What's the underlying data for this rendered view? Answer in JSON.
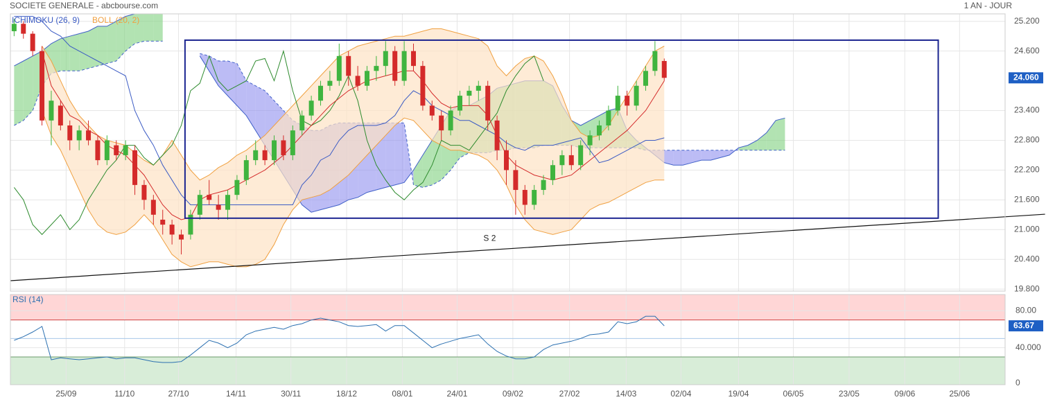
{
  "header": {
    "title": "SOCIETE GENERALE - abcbourse.com",
    "period": "1 AN - JOUR"
  },
  "chart_data": [
    {
      "type": "candlestick",
      "legend": [
        {
          "text": "ICHIMOKU (26, 9)",
          "color": "#3b5bc4"
        },
        {
          "text": "BOLL (20, 2)",
          "color": "#f0a040"
        }
      ],
      "xlim": [
        -0.4,
        106.7
      ],
      "xticks": [
        {
          "value": 5.6,
          "label": "25/09"
        },
        {
          "value": 11.9,
          "label": "11/10"
        },
        {
          "value": 17.7,
          "label": "27/10"
        },
        {
          "value": 23.9,
          "label": "14/11"
        },
        {
          "value": 29.8,
          "label": "30/11"
        },
        {
          "value": 35.8,
          "label": "18/12"
        },
        {
          "value": 41.8,
          "label": "08/01"
        },
        {
          "value": 47.7,
          "label": "24/01"
        },
        {
          "value": 53.7,
          "label": "09/02"
        },
        {
          "value": 59.8,
          "label": "27/02"
        },
        {
          "value": 65.9,
          "label": "14/03"
        },
        {
          "value": 71.8,
          "label": "02/04"
        },
        {
          "value": 78.0,
          "label": "19/04"
        },
        {
          "value": 83.9,
          "label": "06/05"
        },
        {
          "value": 89.9,
          "label": "23/05"
        },
        {
          "value": 95.9,
          "label": "09/06"
        },
        {
          "value": 101.8,
          "label": "25/06"
        }
      ],
      "ylim": [
        19.76,
        25.35
      ],
      "yticks": [
        {
          "value": 25.2,
          "label": "25.200"
        },
        {
          "value": 24.6,
          "label": "24.600"
        },
        {
          "value": 23.4,
          "label": "23.400"
        },
        {
          "value": 22.8,
          "label": "22.800"
        },
        {
          "value": 22.2,
          "label": "22.200"
        },
        {
          "value": 21.6,
          "label": "21.600"
        },
        {
          "value": 21.0,
          "label": "21.000"
        },
        {
          "value": 20.4,
          "label": "20.400"
        },
        {
          "value": 19.8,
          "label": "19.800"
        }
      ],
      "grid": true,
      "up_color": "#3fb43f",
      "down_color": "#d42a2a",
      "ohlc": [
        [
          25.0,
          25.25,
          24.9,
          25.15
        ],
        [
          25.15,
          25.2,
          24.85,
          24.95
        ],
        [
          24.95,
          25.0,
          24.5,
          24.6
        ],
        [
          24.6,
          24.7,
          23.1,
          23.2
        ],
        [
          23.2,
          23.8,
          22.7,
          23.6
        ],
        [
          23.5,
          23.6,
          23.0,
          23.1
        ],
        [
          23.1,
          23.2,
          22.6,
          22.8
        ],
        [
          22.8,
          23.1,
          22.6,
          23.0
        ],
        [
          23.0,
          23.2,
          22.7,
          22.8
        ],
        [
          22.8,
          22.9,
          22.3,
          22.4
        ],
        [
          22.4,
          22.9,
          22.3,
          22.8
        ],
        [
          22.7,
          22.8,
          22.4,
          22.5
        ],
        [
          22.5,
          22.8,
          22.4,
          22.7
        ],
        [
          22.6,
          22.7,
          21.7,
          21.9
        ],
        [
          21.9,
          22.0,
          21.4,
          21.6
        ],
        [
          21.6,
          21.7,
          21.1,
          21.3
        ],
        [
          21.2,
          21.4,
          20.9,
          21.1
        ],
        [
          21.1,
          21.2,
          20.7,
          20.9
        ],
        [
          20.9,
          21.0,
          20.5,
          20.8
        ],
        [
          20.9,
          21.4,
          20.8,
          21.3
        ],
        [
          21.3,
          21.8,
          21.2,
          21.7
        ],
        [
          21.7,
          22.0,
          21.5,
          21.6
        ],
        [
          21.5,
          21.7,
          21.2,
          21.4
        ],
        [
          21.4,
          21.8,
          21.2,
          21.7
        ],
        [
          21.7,
          22.1,
          21.6,
          22.0
        ],
        [
          22.0,
          22.5,
          21.9,
          22.4
        ],
        [
          22.4,
          22.8,
          22.3,
          22.6
        ],
        [
          22.6,
          22.7,
          22.3,
          22.4
        ],
        [
          22.4,
          22.9,
          22.3,
          22.8
        ],
        [
          22.8,
          22.9,
          22.4,
          22.5
        ],
        [
          22.5,
          23.1,
          22.4,
          23.0
        ],
        [
          23.0,
          23.4,
          22.9,
          23.3
        ],
        [
          23.3,
          23.7,
          23.2,
          23.6
        ],
        [
          23.6,
          24.0,
          23.5,
          23.9
        ],
        [
          23.9,
          24.2,
          23.8,
          24.0
        ],
        [
          24.0,
          24.75,
          23.9,
          24.5
        ],
        [
          24.5,
          24.6,
          23.9,
          24.1
        ],
        [
          24.1,
          24.3,
          23.8,
          23.9
        ],
        [
          23.9,
          24.3,
          23.8,
          24.2
        ],
        [
          24.2,
          24.5,
          24.0,
          24.3
        ],
        [
          24.3,
          24.8,
          24.1,
          24.6
        ],
        [
          24.6,
          24.7,
          23.9,
          24.0
        ],
        [
          24.0,
          24.8,
          23.9,
          24.6
        ],
        [
          24.6,
          24.75,
          24.2,
          24.3
        ],
        [
          24.3,
          24.4,
          23.4,
          23.5
        ],
        [
          23.5,
          23.6,
          23.2,
          23.3
        ],
        [
          23.3,
          23.4,
          22.8,
          23.0
        ],
        [
          23.0,
          23.5,
          22.9,
          23.4
        ],
        [
          23.4,
          23.8,
          23.3,
          23.7
        ],
        [
          23.7,
          23.9,
          23.5,
          23.8
        ],
        [
          23.8,
          24.0,
          23.6,
          23.9
        ],
        [
          23.9,
          24.0,
          23.0,
          23.2
        ],
        [
          23.2,
          23.3,
          22.4,
          22.6
        ],
        [
          22.6,
          22.8,
          21.9,
          22.2
        ],
        [
          22.2,
          22.4,
          21.3,
          21.8
        ],
        [
          21.8,
          21.9,
          21.3,
          21.5
        ],
        [
          21.5,
          21.9,
          21.4,
          21.8
        ],
        [
          21.8,
          22.1,
          21.7,
          22.0
        ],
        [
          22.0,
          22.4,
          21.9,
          22.3
        ],
        [
          22.3,
          22.6,
          22.1,
          22.5
        ],
        [
          22.5,
          22.7,
          22.2,
          22.3
        ],
        [
          22.3,
          22.8,
          22.2,
          22.7
        ],
        [
          22.7,
          23.0,
          22.5,
          22.9
        ],
        [
          22.9,
          23.2,
          22.8,
          23.1
        ],
        [
          23.1,
          23.5,
          23.0,
          23.4
        ],
        [
          23.4,
          23.9,
          23.3,
          23.7
        ],
        [
          23.7,
          23.8,
          23.3,
          23.5
        ],
        [
          23.5,
          24.0,
          23.4,
          23.9
        ],
        [
          23.9,
          24.3,
          23.8,
          24.2
        ],
        [
          24.2,
          24.8,
          24.1,
          24.6
        ],
        [
          24.4,
          24.45,
          24.0,
          24.06
        ]
      ],
      "last_label": {
        "value": 24.06,
        "label": "24.060",
        "color": "#1e5fc4"
      },
      "bollinger": {
        "color": "#f0a040",
        "fill": "#fde3c4",
        "upper": [
          null,
          null,
          null,
          24.7,
          24.4,
          24.0,
          23.6,
          23.3,
          23.1,
          22.9,
          22.8,
          22.75,
          22.7,
          22.55,
          22.4,
          22.3,
          22.5,
          22.8,
          22.5,
          22.2,
          22.0,
          22.1,
          22.25,
          22.35,
          22.5,
          22.6,
          22.75,
          22.9,
          23.1,
          23.3,
          23.5,
          23.7,
          23.9,
          24.1,
          24.3,
          24.5,
          24.6,
          24.7,
          24.75,
          24.8,
          24.85,
          24.9,
          24.9,
          24.95,
          25.0,
          25.05,
          25.05,
          25.0,
          24.95,
          24.9,
          24.85,
          24.7,
          24.3,
          24.1,
          24.3,
          24.45,
          24.5,
          24.4,
          24.1,
          23.7,
          23.2,
          22.95,
          22.85,
          22.9,
          23.1,
          23.4,
          23.7,
          24.0,
          24.3,
          24.6,
          24.7
        ],
        "lower": [
          null,
          null,
          null,
          23.4,
          22.9,
          22.6,
          22.2,
          21.8,
          21.4,
          21.1,
          20.95,
          20.9,
          20.95,
          21.1,
          21.3,
          21.1,
          20.8,
          20.5,
          20.35,
          20.25,
          20.3,
          20.35,
          20.35,
          20.3,
          20.25,
          20.25,
          20.3,
          20.4,
          20.7,
          21.1,
          21.4,
          21.6,
          21.65,
          21.7,
          21.8,
          21.95,
          22.1,
          22.3,
          22.5,
          22.7,
          22.9,
          23.1,
          23.25,
          23.2,
          23.0,
          22.8,
          22.7,
          22.6,
          22.6,
          22.55,
          22.5,
          22.4,
          22.2,
          21.9,
          21.5,
          21.2,
          21.0,
          20.95,
          20.9,
          20.95,
          21.0,
          21.2,
          21.4,
          21.5,
          21.55,
          21.65,
          21.75,
          21.85,
          21.95,
          22.0,
          22.0
        ]
      },
      "ichimoku": {
        "conversion_color": "#d42a2a",
        "base_color": "#3b5bc4",
        "lagging_color": "#2e8b2e",
        "span_color": "#4060c8",
        "bull_fill": "#7fd07f",
        "bear_fill": "#9090ee",
        "conversion": [
          null,
          null,
          null,
          24.6,
          23.9,
          23.6,
          23.3,
          23.2,
          23.0,
          22.9,
          22.7,
          22.6,
          22.5,
          22.3,
          22.1,
          21.8,
          21.5,
          21.3,
          21.2,
          21.25,
          21.6,
          21.7,
          21.75,
          21.8,
          21.9,
          22.0,
          22.1,
          22.2,
          22.35,
          22.5,
          22.7,
          22.9,
          23.1,
          23.3,
          23.5,
          23.65,
          23.8,
          23.9,
          24.0,
          24.05,
          24.1,
          24.15,
          24.2,
          24.2,
          24.0,
          23.75,
          23.55,
          23.45,
          23.5,
          23.5,
          23.5,
          23.3,
          22.9,
          22.5,
          22.3,
          22.2,
          22.1,
          22.05,
          22.0,
          22.05,
          22.1,
          22.25,
          22.4,
          22.55,
          22.7,
          22.85,
          23.0,
          23.2,
          23.4,
          23.7,
          24.0
        ],
        "base": [
          25.3,
          25.3,
          25.3,
          25.2,
          25.0,
          24.9,
          24.7,
          24.6,
          24.5,
          24.4,
          24.3,
          24.2,
          24.1,
          23.4,
          23.0,
          22.7,
          22.3,
          22.0,
          21.7,
          21.5,
          21.5,
          21.5,
          21.5,
          21.5,
          21.5,
          21.5,
          21.5,
          21.5,
          21.5,
          21.5,
          21.5,
          21.9,
          22.1,
          22.4,
          22.5,
          22.8,
          23.0,
          23.1,
          23.1,
          23.1,
          23.15,
          23.3,
          23.6,
          23.8,
          23.7,
          23.5,
          23.4,
          23.3,
          23.2,
          23.2,
          23.1,
          23.0,
          22.9,
          22.75,
          22.65,
          22.6,
          22.7,
          22.7,
          22.7,
          22.75,
          22.8,
          22.85,
          22.6,
          22.35,
          22.4,
          22.5,
          22.6,
          22.7,
          22.8,
          22.8,
          22.85
        ],
        "lagging": [
          21.85,
          21.6,
          21.1,
          20.9,
          21.1,
          21.3,
          21.0,
          21.2,
          21.6,
          21.9,
          22.2,
          22.4,
          22.7,
          22.7,
          22.45,
          22.3,
          22.5,
          22.7,
          23.1,
          23.8,
          23.95,
          24.5,
          24.0,
          23.8,
          23.9,
          24.0,
          24.4,
          24.45,
          24.0,
          24.6,
          23.8,
          23.2,
          23.1,
          23.2,
          23.4,
          23.7,
          24.1,
          23.6,
          22.8,
          22.3,
          22.0,
          21.75,
          21.6,
          21.8,
          21.95,
          22.3,
          22.8,
          22.7,
          22.7,
          22.6,
          22.85,
          23.1,
          23.35,
          23.8,
          24.1,
          24.35,
          24.5,
          24.0,
          null,
          null,
          null,
          null,
          null,
          null,
          null,
          null,
          null,
          null,
          null,
          null,
          null
        ],
        "span_a": [
          24.3,
          24.4,
          24.5,
          24.6,
          24.75,
          24.85,
          24.9,
          24.95,
          25.0,
          25.1,
          25.1,
          25.2,
          25.3,
          25.35,
          25.35,
          25.35,
          25.35,
          null,
          null,
          null,
          24.5,
          24.2,
          23.9,
          23.7,
          23.5,
          23.3,
          23.0,
          22.7,
          22.4,
          22.1,
          21.8,
          21.5,
          21.35,
          21.4,
          21.45,
          21.5,
          21.6,
          21.65,
          21.75,
          21.8,
          21.85,
          21.9,
          21.95,
          22.2,
          22.5,
          22.8,
          23.1,
          23.4,
          23.5,
          23.5,
          23.6,
          23.7,
          23.85,
          23.9,
          23.95,
          24.0,
          24.0,
          24.0,
          23.9,
          23.5,
          23.2,
          23.1,
          23.2,
          23.3,
          23.4,
          23.45,
          23.0,
          22.8,
          22.65,
          22.5,
          22.35,
          22.3,
          22.3,
          22.35,
          22.4,
          22.4,
          22.45,
          22.5,
          22.65,
          22.7,
          22.8,
          22.95,
          23.2,
          23.25
        ],
        "span_b": [
          23.1,
          23.2,
          23.4,
          23.9,
          24.15,
          24.2,
          24.2,
          24.2,
          24.25,
          24.3,
          24.35,
          24.4,
          24.6,
          24.75,
          24.8,
          24.8,
          24.8,
          null,
          null,
          null,
          24.55,
          24.5,
          24.4,
          24.4,
          24.35,
          24.0,
          23.9,
          23.8,
          23.6,
          23.4,
          23.2,
          23.1,
          23.0,
          23.0,
          23.1,
          23.15,
          23.15,
          23.15,
          23.15,
          23.15,
          23.15,
          23.15,
          23.15,
          21.9,
          21.85,
          21.9,
          22.0,
          22.2,
          22.45,
          22.55,
          22.55,
          22.55,
          22.6,
          22.6,
          22.65,
          22.65,
          22.65,
          22.7,
          22.7,
          22.7,
          22.7,
          22.65,
          22.65,
          22.65,
          22.65,
          22.65,
          22.65,
          22.65,
          22.6,
          22.6,
          22.6,
          22.6,
          22.6,
          22.6,
          22.6,
          22.6,
          22.6,
          22.6,
          22.6,
          22.6,
          22.6,
          22.6,
          22.6,
          22.6
        ]
      },
      "annotations": {
        "box": {
          "x": [
            18.4,
            99.5
          ],
          "y": [
            21.23,
            24.82
          ],
          "color": "#1a2490"
        },
        "trendline": {
          "x": [
            -0.4,
            111.0
          ],
          "y": [
            19.97,
            21.31
          ],
          "color": "#111111"
        },
        "label": {
          "text": "S 2",
          "x": 51.2,
          "y": 20.82
        }
      }
    },
    {
      "type": "line",
      "label": "RSI (14)",
      "color": "#2a6fb0",
      "ylim": [
        0,
        97.5
      ],
      "yticks": [
        0,
        {
          "value": 40,
          "label": "40.000"
        },
        {
          "value": 80,
          "label": "80.00"
        }
      ],
      "zones": {
        "upper": 70,
        "lower": 30,
        "mid": 50,
        "upper_fill": "#ffd6d6",
        "upper_line": "#d04040",
        "lower_fill": "#d8edd8",
        "lower_line": "#6a9a6a",
        "mid_line": "#a8c8e8"
      },
      "values": [
        48,
        52,
        57,
        63,
        27,
        29,
        28,
        27,
        28,
        29,
        30,
        28,
        29,
        29,
        27,
        25,
        24,
        24,
        25,
        32,
        40,
        48,
        45,
        40,
        45,
        54,
        58,
        60,
        62,
        60,
        64,
        66,
        70,
        72,
        70,
        68,
        64,
        63,
        64,
        65,
        58,
        64,
        64,
        56,
        48,
        40,
        44,
        47,
        50,
        52,
        54,
        44,
        36,
        31,
        28,
        28,
        30,
        38,
        43,
        45,
        47,
        50,
        54,
        55,
        57,
        68,
        66,
        68,
        74,
        74,
        63.67
      ],
      "last_label": {
        "value": 63.67,
        "label": "63.67",
        "color": "#1e5fc4"
      }
    }
  ]
}
